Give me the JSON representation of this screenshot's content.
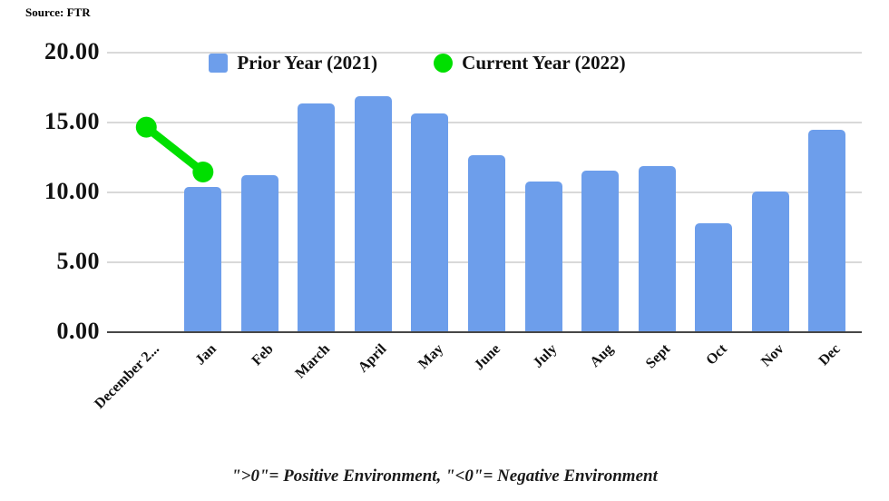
{
  "source_label": "Source: FTR",
  "footnote": "\">0\"= Positive Environment, \"<0\"= Negative Environment",
  "colors": {
    "bar_blue": "#6d9eeb",
    "line_green": "#00df00",
    "gridline": "#d9d9d9",
    "axis_baseline": "#474747"
  },
  "legend": {
    "items": [
      {
        "label": "Prior Year (2021)",
        "marker": "square-icon",
        "color": "#6d9eeb"
      },
      {
        "label": "Current Year (2022)",
        "marker": "circle-icon",
        "color": "#00df00"
      }
    ],
    "position": "top-center"
  },
  "chart_data": {
    "type": "bar",
    "title": "",
    "xlabel": "",
    "ylabel": "",
    "categories": [
      "December 2...",
      "Jan",
      "Feb",
      "March",
      "April",
      "May",
      "June",
      "July",
      "Aug",
      "Sept",
      "Oct",
      "Nov",
      "Dec"
    ],
    "series": [
      {
        "name": "Prior Year (2021)",
        "type": "bar",
        "color": "#6d9eeb",
        "values": [
          null,
          10.3,
          11.2,
          16.3,
          16.8,
          15.6,
          12.6,
          10.7,
          11.5,
          11.8,
          7.7,
          10.0,
          14.4
        ]
      },
      {
        "name": "Current Year (2022)",
        "type": "line",
        "color": "#00df00",
        "values": [
          14.6,
          11.4,
          null,
          null,
          null,
          null,
          null,
          null,
          null,
          null,
          null,
          null,
          null
        ]
      }
    ],
    "ylim": [
      0,
      20
    ],
    "ytick_labels": [
      "20.00",
      "15.00",
      "10.00",
      "5.00",
      "0.00"
    ],
    "grid": true,
    "legend_position": "top-center"
  }
}
